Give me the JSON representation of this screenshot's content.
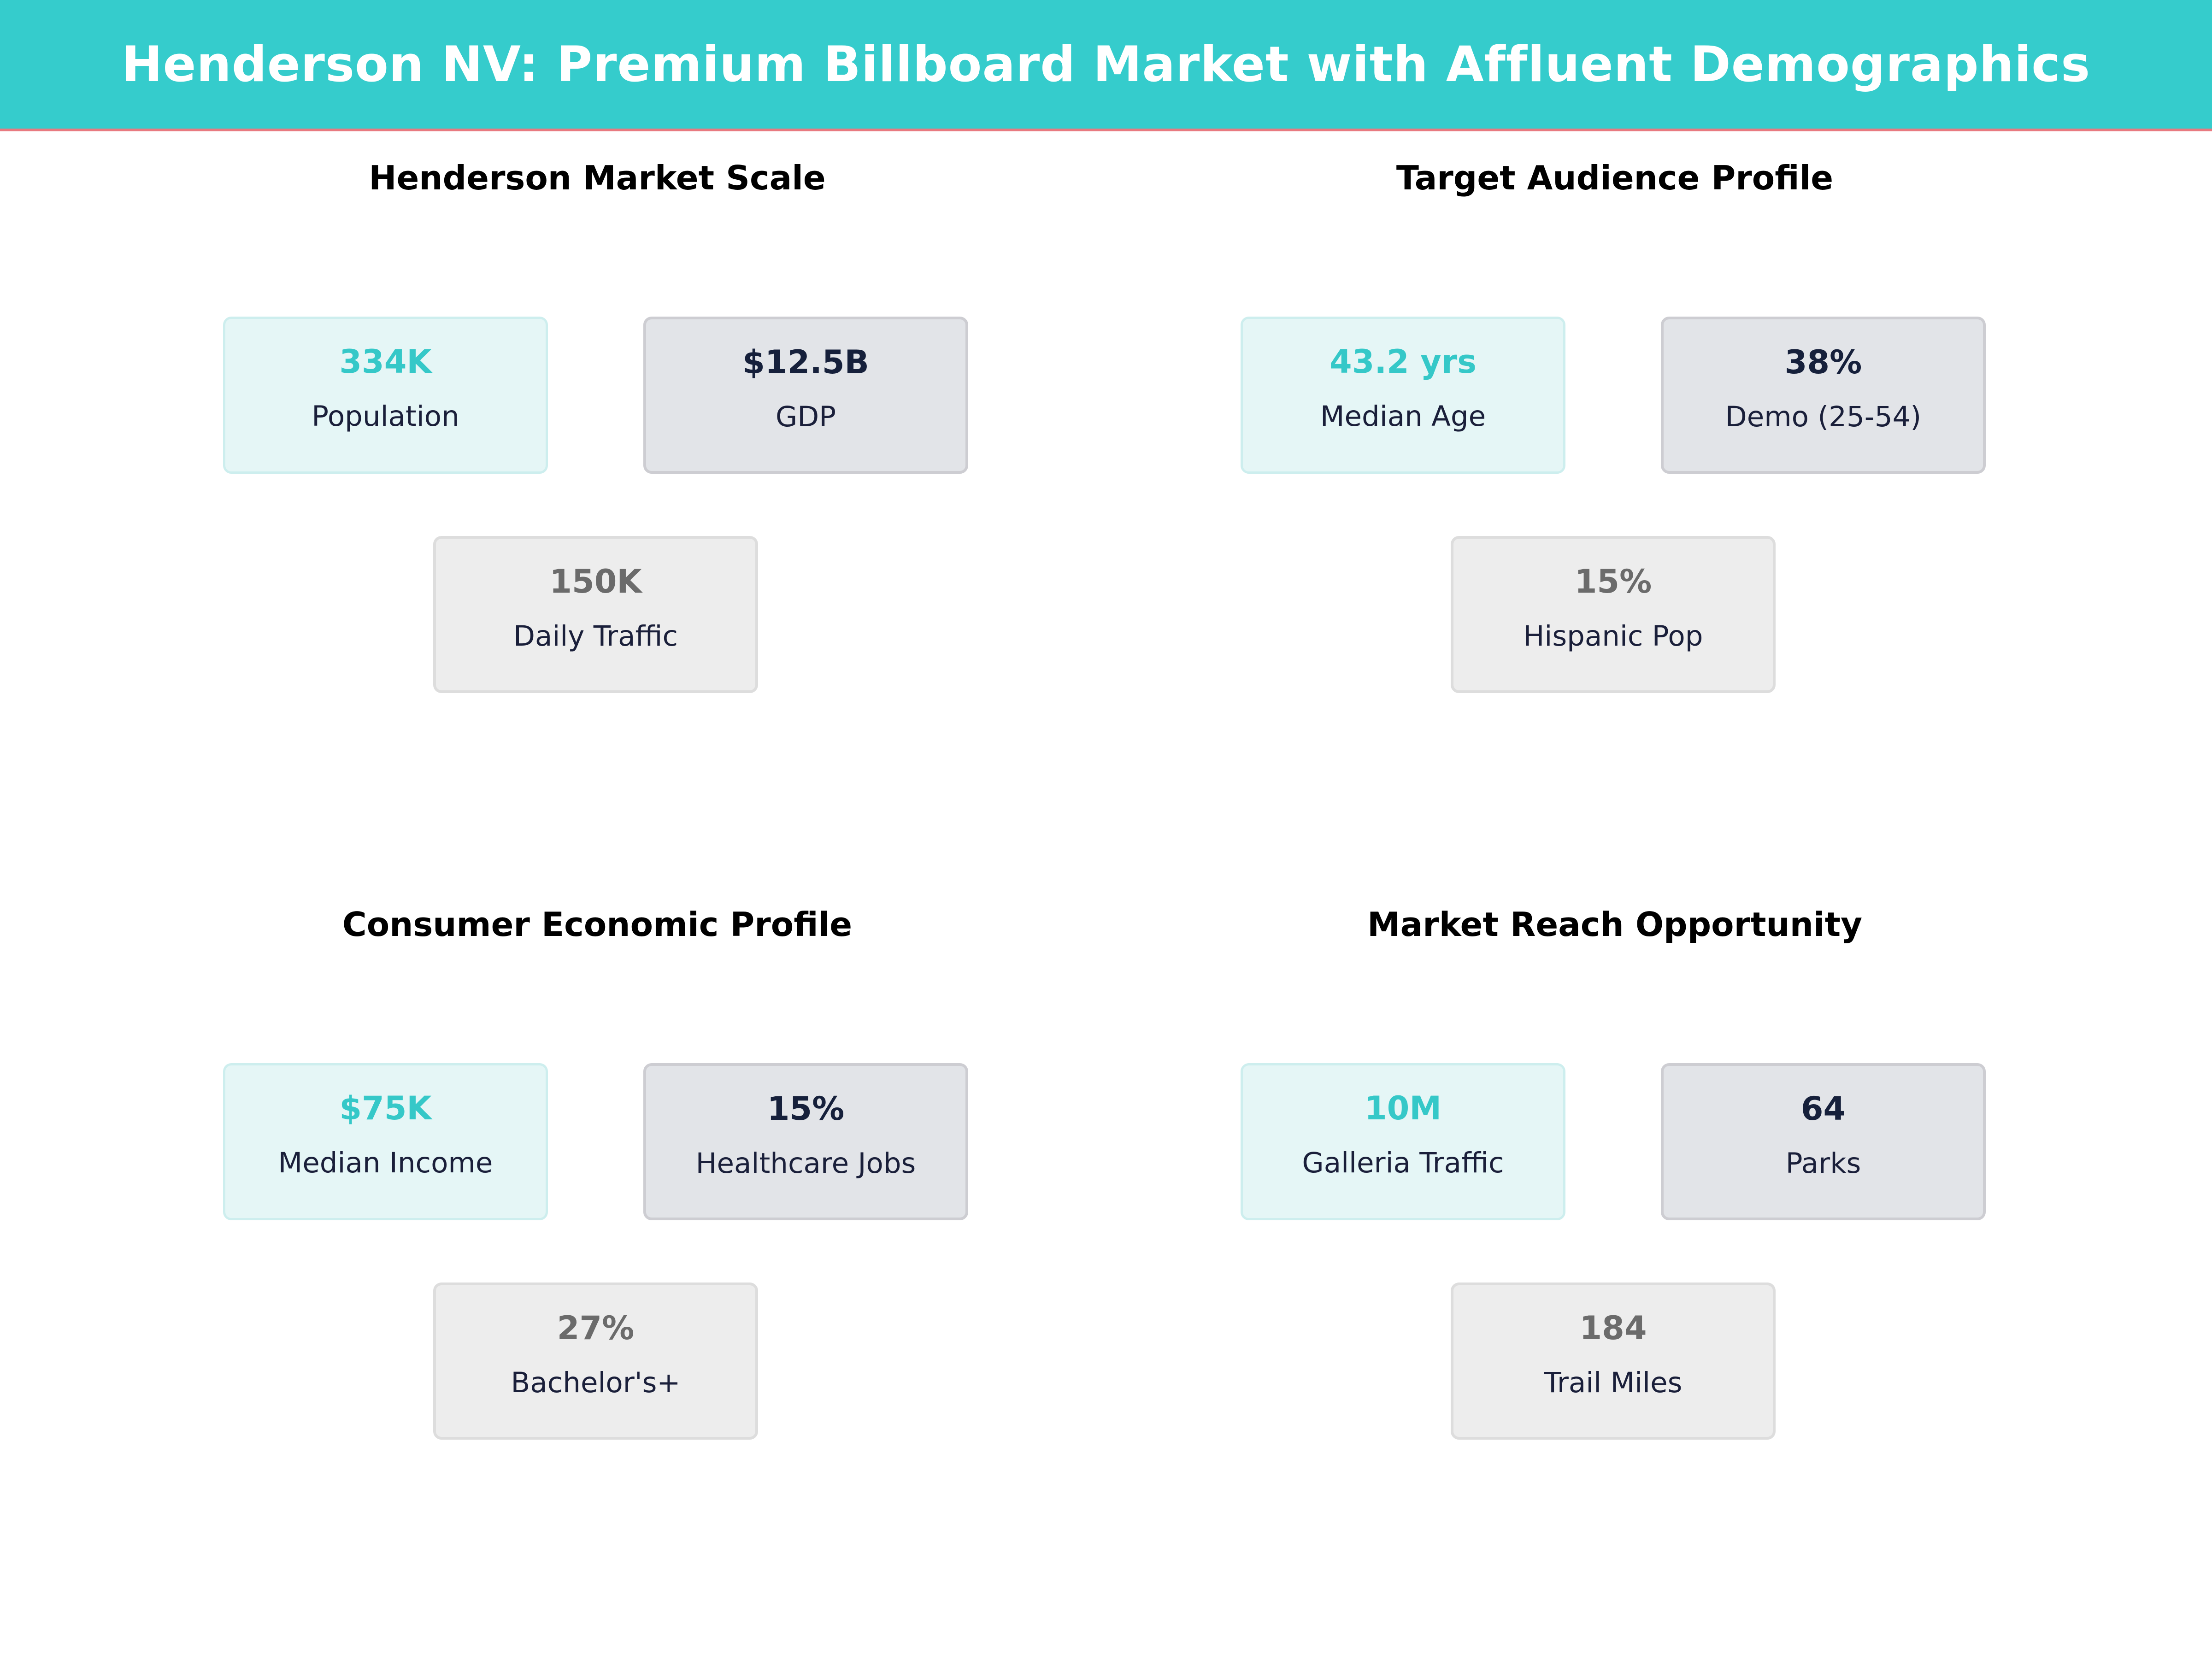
{
  "title": "Henderson NV: Premium Billboard Market with Affluent Demographics",
  "colors": {
    "banner": "#35cccc",
    "banner_rule": "#e87a80",
    "teal_value": "#35c8c8",
    "navy_value": "#16203b",
    "gray_value": "#6b6b6b"
  },
  "panels": [
    {
      "title": "Henderson Market Scale",
      "cards": [
        {
          "value": "334K",
          "label": "Population"
        },
        {
          "value": "$12.5B",
          "label": "GDP"
        },
        {
          "value": "150K",
          "label": "Daily Traffic"
        }
      ]
    },
    {
      "title": "Target Audience Profile",
      "cards": [
        {
          "value": "43.2 yrs",
          "label": "Median Age"
        },
        {
          "value": "38%",
          "label": "Demo (25-54)"
        },
        {
          "value": "15%",
          "label": "Hispanic Pop"
        }
      ]
    },
    {
      "title": "Consumer Economic Profile",
      "cards": [
        {
          "value": "$75K",
          "label": "Median Income"
        },
        {
          "value": "15%",
          "label": "Healthcare Jobs"
        },
        {
          "value": "27%",
          "label": "Bachelor's+"
        }
      ]
    },
    {
      "title": "Market Reach Opportunity",
      "cards": [
        {
          "value": "10M",
          "label": "Galleria Traffic"
        },
        {
          "value": "64",
          "label": "Parks"
        },
        {
          "value": "184",
          "label": "Trail Miles"
        }
      ]
    }
  ]
}
